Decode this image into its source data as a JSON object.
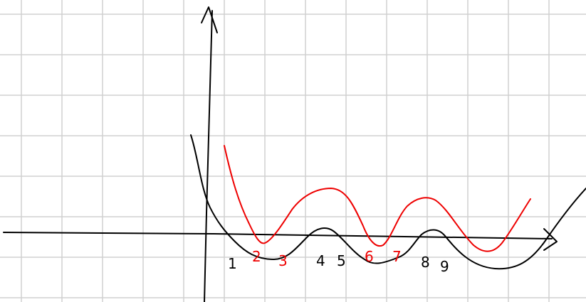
{
  "labels": [
    {
      "text": "1",
      "color": "black"
    },
    {
      "text": "2",
      "color": "red"
    },
    {
      "text": "3",
      "color": "red"
    },
    {
      "text": "4",
      "color": "black"
    },
    {
      "text": "5",
      "color": "black"
    },
    {
      "text": "6",
      "color": "red"
    },
    {
      "text": "7",
      "color": "red"
    },
    {
      "text": "8",
      "color": "black"
    },
    {
      "text": "9",
      "color": "black"
    }
  ]
}
